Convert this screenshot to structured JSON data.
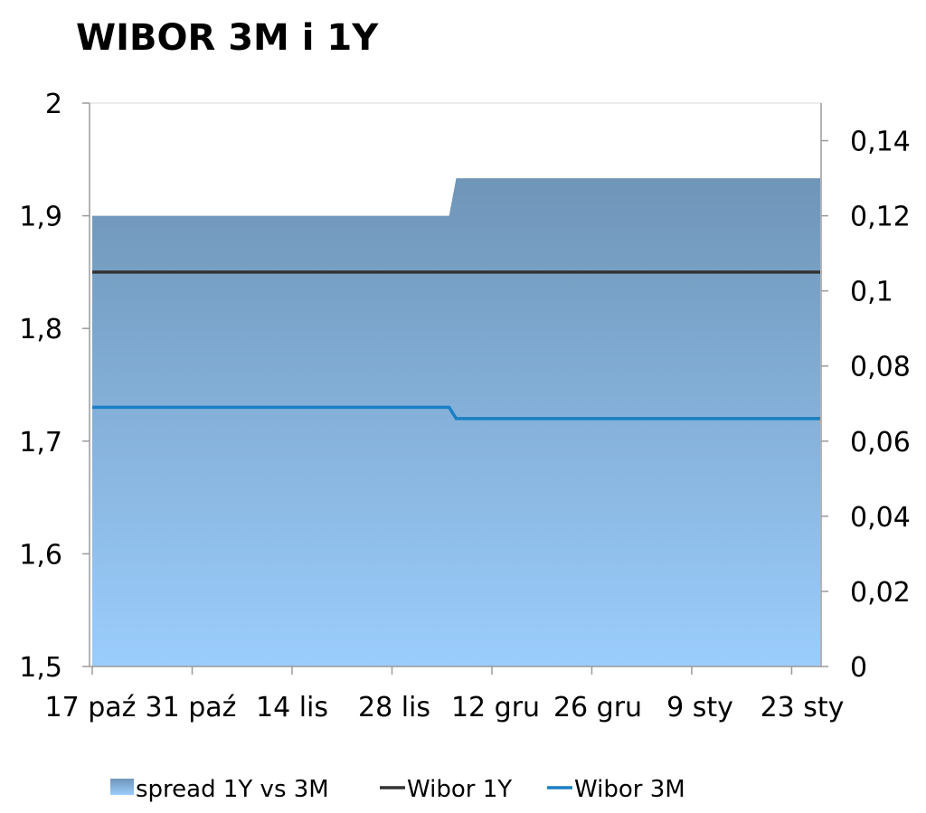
{
  "chart_data": {
    "type": "area",
    "title": "WIBOR 3M i 1Y",
    "xlabel": "",
    "ylabel": "",
    "categories": [
      "17 paź",
      "31 paź",
      "14 lis",
      "28 lis",
      "12 gru",
      "26 gru",
      "9 sty",
      "23 sty"
    ],
    "y_left": {
      "ylim": [
        1.5,
        2.0
      ],
      "ticks": [
        "1,5",
        "1,6",
        "1,7",
        "1,8",
        "1,9",
        "2"
      ]
    },
    "y_right": {
      "ylim": [
        0,
        0.15
      ],
      "ticks": [
        "0",
        "0,02",
        "0,04",
        "0,06",
        "0,08",
        "0,1",
        "0,12",
        "0,14"
      ]
    },
    "grid": false,
    "legend_position": "bottom",
    "x_range_days": [
      0,
      102
    ],
    "series": [
      {
        "name": "spread 1Y vs 3M",
        "kind": "area",
        "axis": "right",
        "color_top": "#6f95b8",
        "color_bottom": "#9bcdfc",
        "points": [
          [
            0,
            0.12
          ],
          [
            50,
            0.12
          ],
          [
            51,
            0.13
          ],
          [
            102,
            0.13
          ]
        ]
      },
      {
        "name": "Wibor 1Y",
        "kind": "line",
        "axis": "left",
        "color": "#333333",
        "points": [
          [
            0,
            1.85
          ],
          [
            102,
            1.85
          ]
        ]
      },
      {
        "name": "Wibor 3M",
        "kind": "line",
        "axis": "left",
        "color": "#1a7fc4",
        "points": [
          [
            0,
            1.73
          ],
          [
            50,
            1.73
          ],
          [
            51,
            1.72
          ],
          [
            102,
            1.72
          ]
        ]
      }
    ]
  }
}
